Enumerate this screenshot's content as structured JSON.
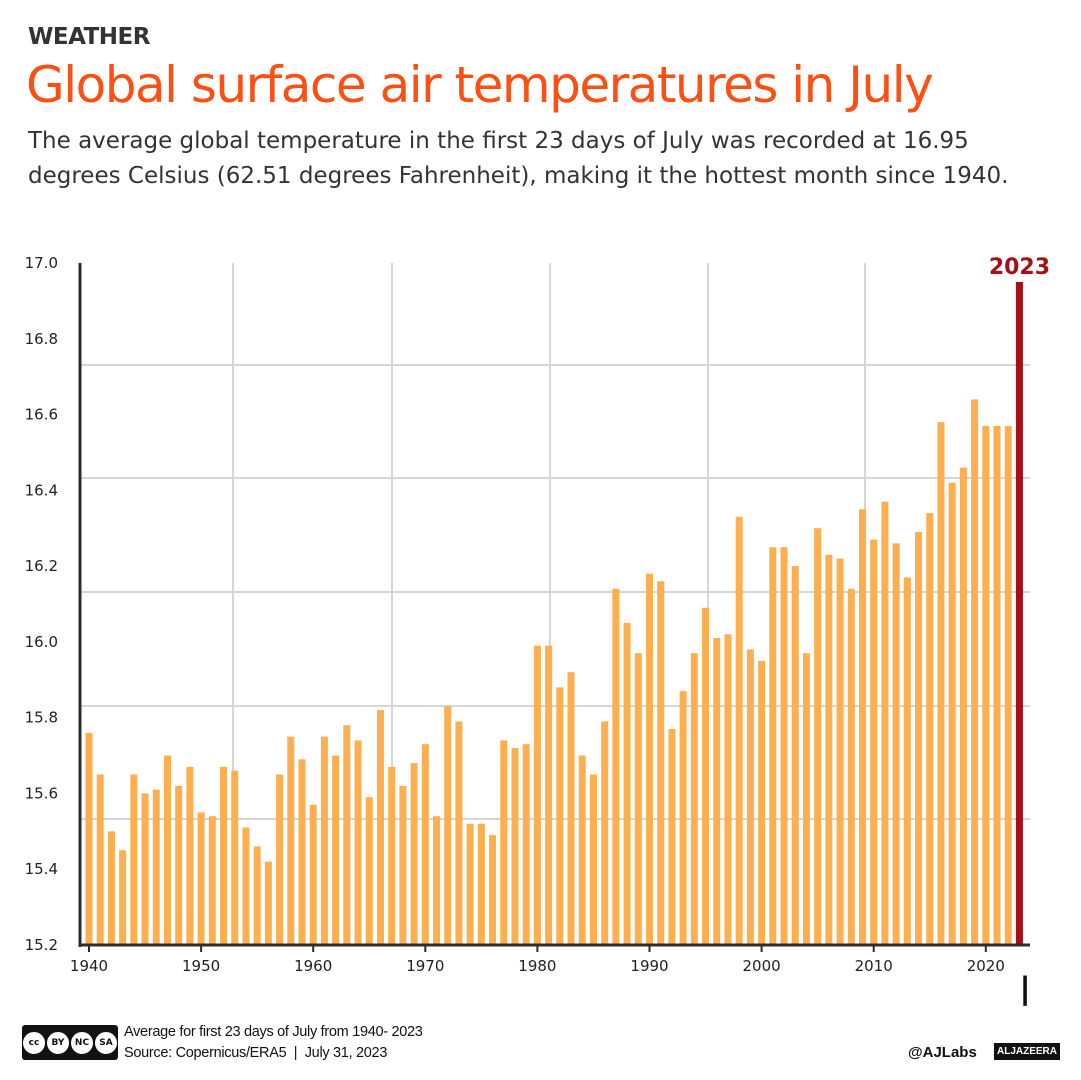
{
  "header": {
    "kicker": "WEATHER",
    "title": "Global surface air temperatures in July",
    "subtitle": "The average global temperature in the first 23 days of July was recorded at 16.95 degrees Celsius (62.51 degrees Fahrenheit), making it the hottest month since 1940."
  },
  "footer": {
    "note": "Average for first 23 days of July from 1940- 2023",
    "source": "Source: Copernicus/ERA5  |  July 31, 2023",
    "handle": "@AJLabs",
    "brand": "ALJAZEERA",
    "license": [
      "BY",
      "NC",
      "SA"
    ]
  },
  "colors": {
    "bar": "#fdae4f",
    "highlight": "#a50f15",
    "title": "#fa5014"
  },
  "chart_data": {
    "type": "bar",
    "title": "Global surface air temperatures in July",
    "xlabel": "",
    "ylabel": "",
    "ylim": [
      15.2,
      17.0
    ],
    "yticks": [
      "15.2",
      "15.4",
      "15.6",
      "15.8",
      "16.0",
      "16.2",
      "16.4",
      "16.6",
      "16.8",
      "17.0"
    ],
    "xticks": [
      "1940",
      "1950",
      "1960",
      "1970",
      "1980",
      "1990",
      "2000",
      "2010",
      "2020"
    ],
    "grid": true,
    "highlight": {
      "year": 2023,
      "label": "2023",
      "value": 16.95
    },
    "x_start": 1940,
    "values": [
      15.76,
      15.65,
      15.5,
      15.45,
      15.65,
      15.6,
      15.61,
      15.7,
      15.62,
      15.67,
      15.55,
      15.54,
      15.67,
      15.66,
      15.51,
      15.46,
      15.42,
      15.65,
      15.75,
      15.69,
      15.57,
      15.75,
      15.7,
      15.78,
      15.74,
      15.59,
      15.82,
      15.67,
      15.62,
      15.68,
      15.73,
      15.54,
      15.83,
      15.79,
      15.52,
      15.52,
      15.49,
      15.74,
      15.72,
      15.73,
      15.99,
      15.99,
      15.88,
      15.92,
      15.7,
      15.65,
      15.79,
      16.14,
      16.05,
      15.97,
      16.18,
      16.16,
      15.77,
      15.87,
      15.97,
      16.09,
      16.01,
      16.02,
      16.33,
      15.98,
      15.95,
      16.25,
      16.25,
      16.2,
      15.97,
      16.3,
      16.23,
      16.22,
      16.14,
      16.35,
      16.27,
      16.37,
      16.26,
      16.17,
      16.29,
      16.34,
      16.58,
      16.42,
      16.46,
      16.64,
      16.57,
      16.57,
      16.57,
      16.95
    ]
  }
}
